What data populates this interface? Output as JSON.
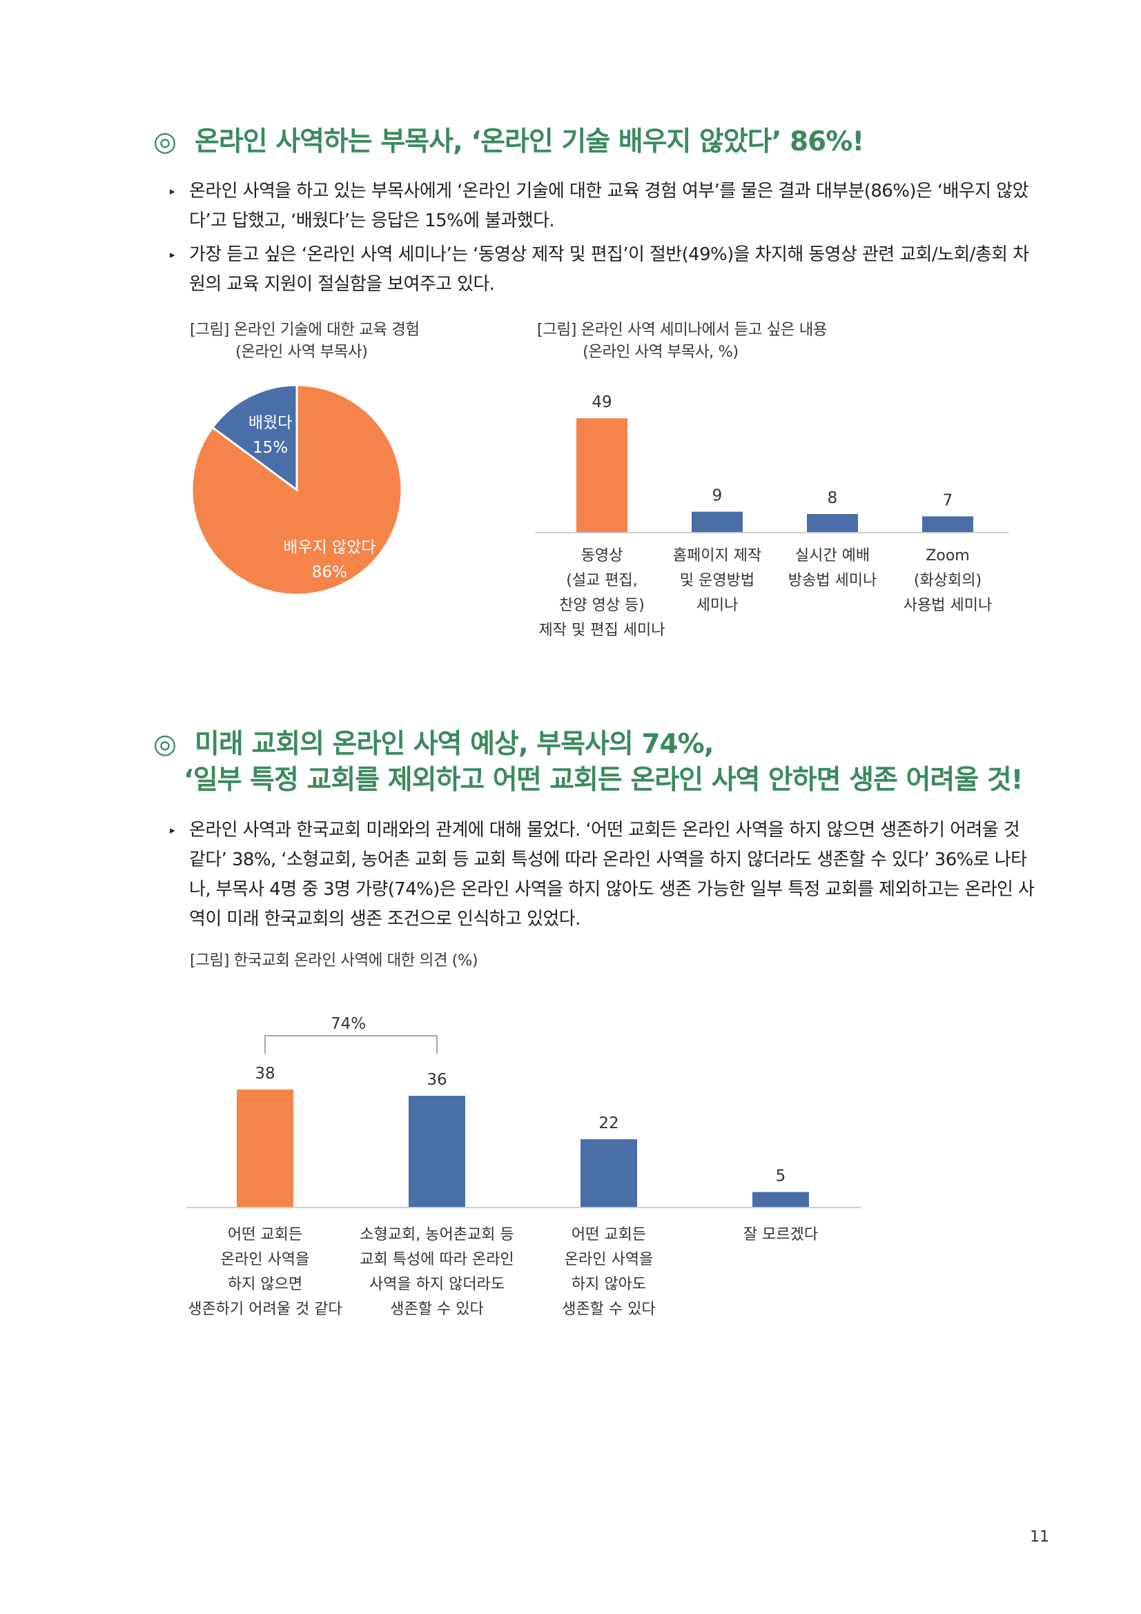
{
  "section1": {
    "mark": "◎",
    "title": "온라인 사역하는 부목사, ‘온라인 기술 배우지 않았다’ 86%!",
    "bullets": [
      "온라인 사역을 하고 있는 부목사에게 ‘온라인 기술에 대한 교육 경험 여부’를 물은 결과 대부분(86%)은 ‘배우지 않았다’고 답했고, ‘배웠다’는 응답은 15%에 불과했다.",
      "가장 듣고 싶은 ‘온라인 사역 세미나’는 ‘동영상 제작 및 편집’이 절반(49%)을 차지해 동영상 관련 교회/노회/총회 차원의 교육 지원이 절실함을 보여주고 있다."
    ],
    "figure_left": {
      "caption": "[그림] 온라인 기술에 대한 교육 경험",
      "subcaption": "(온라인 사역 부목사)"
    },
    "figure_right": {
      "caption": "[그림] 온라인 사역 세미나에서 듣고 싶은 내용",
      "subcaption": "(온라인 사역 부목사, %)"
    }
  },
  "section2": {
    "mark": "◎",
    "title_line1": "미래 교회의 온라인 사역 예상, 부목사의 74%,",
    "title_line2": "‘일부 특정 교회를 제외하고 어떤 교회든 온라인 사역 안하면 생존 어려울 것!",
    "bullets": [
      "온라인 사역과 한국교회 미래와의 관계에 대해 물었다. ‘어떤 교회든 온라인 사역을 하지 않으면 생존하기 어려울 것 같다’ 38%, ‘소형교회, 농어촌 교회 등 교회 특성에 따라 온라인 사역을 하지 않더라도 생존할 수 있다’ 36%로 나타나, 부목사 4명 중 3명 가량(74%)은 온라인 사역을 하지 않아도 생존 가능한 일부 특정 교회를 제외하고는 온라인 사역이 미래 한국교회의 생존 조건으로 인식하고 있었다."
    ],
    "figure": {
      "caption": "[그림] 한국교회 온라인 사역에 대한 의견 (%)"
    }
  },
  "page_number": "11",
  "colors": {
    "orange": "#f4844a",
    "blue": "#4a6ea8",
    "heading_green": "#3a8a5c"
  },
  "chart_data": [
    {
      "type": "pie",
      "slices": [
        {
          "name": "배웠다",
          "value": 15,
          "label": "15%",
          "color": "#4a6ea8"
        },
        {
          "name": "배우지 않았다",
          "value": 86,
          "label": "86%",
          "color": "#f4844a"
        }
      ]
    },
    {
      "type": "bar",
      "categories": [
        [
          "동영상",
          "(설교 편집,",
          "찬양 영상 등)",
          "제작 및 편집 세미나"
        ],
        [
          "홈페이지 제작",
          "및 운영방법",
          "세미나"
        ],
        [
          "실시간 예배",
          "방송법 세미나"
        ],
        [
          "Zoom",
          "(화상회의)",
          "사용법 세미나"
        ]
      ],
      "values": [
        49,
        9,
        8,
        7
      ],
      "colors": [
        "#f4844a",
        "#4a6ea8",
        "#4a6ea8",
        "#4a6ea8"
      ],
      "ylim": [
        0,
        52
      ]
    },
    {
      "type": "bar",
      "categories": [
        [
          "어떤 교회든",
          "온라인 사역을",
          "하지 않으면",
          "생존하기 어려울 것 같다"
        ],
        [
          "소형교회, 농어촌교회 등",
          "교회 특성에 따라 온라인",
          "사역을 하지 않더라도",
          "생존할 수 있다"
        ],
        [
          "어떤 교회든",
          "온라인 사역을",
          "하지 않아도",
          "생존할 수 있다"
        ],
        [
          "잘 모르겠다"
        ]
      ],
      "values": [
        38,
        36,
        22,
        5
      ],
      "colors": [
        "#f4844a",
        "#4a6ea8",
        "#4a6ea8",
        "#4a6ea8"
      ],
      "ylim": [
        0,
        40
      ],
      "annotation": {
        "text": "74%",
        "span": [
          0,
          1
        ]
      }
    }
  ]
}
